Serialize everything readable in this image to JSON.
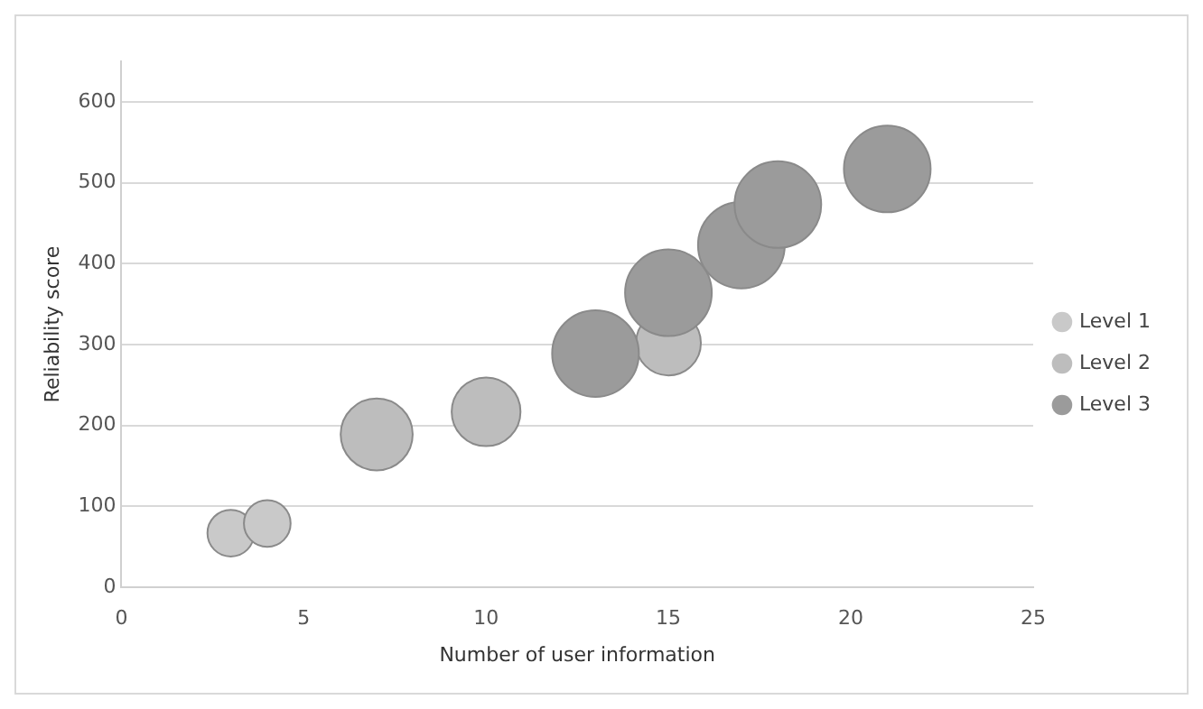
{
  "chart_data": {
    "type": "bubble",
    "xlabel": "Number of user information",
    "ylabel": "Reliability score",
    "xlim": [
      0,
      25
    ],
    "xticks": [
      0,
      5,
      10,
      15,
      20,
      25
    ],
    "ylim": [
      0,
      650
    ],
    "yticks": [
      0,
      100,
      200,
      300,
      400,
      500,
      600
    ],
    "grid": "y",
    "legend": "right",
    "series": [
      {
        "name": "Level 1",
        "color": "#c9c9c9",
        "x": [
          3,
          4
        ],
        "values": [
          67,
          79
        ],
        "sizes": [
          0.29,
          0.29
        ]
      },
      {
        "name": "Level 2",
        "color": "#bdbdbd",
        "x": [
          7,
          10,
          15
        ],
        "values": [
          189,
          217,
          302
        ],
        "sizes": [
          0.69,
          0.63,
          0.56
        ]
      },
      {
        "name": "Level 3",
        "color": "#9b9b9b",
        "x": [
          13,
          15,
          17,
          18,
          21
        ],
        "values": [
          289,
          364,
          423,
          473,
          517
        ],
        "sizes": [
          1,
          1,
          1,
          1,
          1
        ]
      }
    ]
  }
}
